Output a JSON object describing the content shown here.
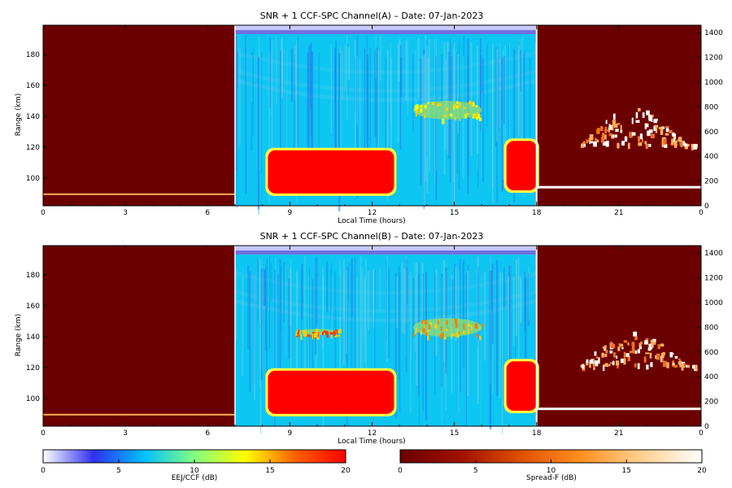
{
  "chart_data": [
    {
      "type": "heatmap",
      "title": "SNR + 1 CCF-SPC Channel(A) – Date: 07-Jan-2023",
      "xlabel": "Local Time (hours)",
      "ylabel": "Range (km)",
      "x_ticks": [
        "0",
        "3",
        "6",
        "9",
        "12",
        "15",
        "18",
        "21",
        "0"
      ],
      "xlim": [
        0,
        24
      ],
      "left_yticks": [
        "100",
        "120",
        "140",
        "160",
        "180"
      ],
      "left_ylim": [
        82,
        199
      ],
      "right_yticks": [
        "0",
        "200",
        "400",
        "600",
        "800",
        "1000",
        "1200",
        "1400"
      ],
      "right_ylim": [
        0,
        1460
      ],
      "segments": [
        {
          "x": [
            0,
            7
          ],
          "colormap": "Spread-F",
          "note_level_db": 0
        },
        {
          "x": [
            7,
            18
          ],
          "colormap": "EEJ/CCF",
          "note_level_db": 7
        },
        {
          "x": [
            18,
            24
          ],
          "colormap": "Spread-F",
          "note_level_db": 0
        }
      ],
      "features": [
        {
          "x": [
            0,
            7
          ],
          "y": [
            89,
            90
          ],
          "level_db": 14
        },
        {
          "x": [
            8.2,
            12.8
          ],
          "y": [
            90,
            118
          ],
          "level_db": 20
        },
        {
          "x": [
            16.9,
            18
          ],
          "y": [
            92,
            124
          ],
          "level_db": 20
        },
        {
          "x": [
            13.5,
            16
          ],
          "y": [
            138,
            150
          ],
          "level_db": 13
        },
        {
          "x": [
            19.6,
            23.8
          ],
          "y": [
            400,
            800
          ],
          "level_db": 16
        },
        {
          "x": [
            18,
            24
          ],
          "y": [
            150,
            160
          ],
          "level_db": 20
        }
      ]
    },
    {
      "type": "heatmap",
      "title": "SNR + 1 CCF-SPC Channel(B) – Date: 07-Jan-2023",
      "xlabel": "Local Time (hours)",
      "ylabel": "Range (km)",
      "x_ticks": [
        "0",
        "3",
        "6",
        "9",
        "12",
        "15",
        "18",
        "21",
        "0"
      ],
      "xlim": [
        0,
        24
      ],
      "left_yticks": [
        "100",
        "120",
        "140",
        "160",
        "180"
      ],
      "left_ylim": [
        82,
        199
      ],
      "right_yticks": [
        "0",
        "200",
        "400",
        "600",
        "800",
        "1000",
        "1200",
        "1400"
      ],
      "right_ylim": [
        0,
        1460
      ],
      "segments": [
        {
          "x": [
            0,
            7
          ],
          "colormap": "Spread-F",
          "note_level_db": 0
        },
        {
          "x": [
            7,
            18
          ],
          "colormap": "EEJ/CCF",
          "note_level_db": 7
        },
        {
          "x": [
            18,
            24
          ],
          "colormap": "Spread-F",
          "note_level_db": 0
        }
      ],
      "features": [
        {
          "x": [
            0,
            7
          ],
          "y": [
            89,
            90
          ],
          "level_db": 14
        },
        {
          "x": [
            8.2,
            12.8
          ],
          "y": [
            90,
            118
          ],
          "level_db": 20
        },
        {
          "x": [
            16.9,
            18
          ],
          "y": [
            92,
            124
          ],
          "level_db": 20
        },
        {
          "x": [
            9.2,
            10.8
          ],
          "y": [
            141,
            145
          ],
          "level_db": 18
        },
        {
          "x": [
            13.5,
            16
          ],
          "y": [
            140,
            152
          ],
          "level_db": 16
        },
        {
          "x": [
            19.6,
            23.8
          ],
          "y": [
            400,
            780
          ],
          "level_db": 16
        },
        {
          "x": [
            18,
            24
          ],
          "y": [
            140,
            150
          ],
          "level_db": 20
        }
      ]
    }
  ],
  "colorbars": [
    {
      "label": "EEJ/CCF (dB)",
      "ticks": [
        "0",
        "5",
        "10",
        "15",
        "20"
      ],
      "range": [
        0,
        20
      ],
      "stops": [
        "#ffffff",
        "#3030f0",
        "#00c0ff",
        "#80ff80",
        "#ffff00",
        "#ff6000",
        "#ff0000"
      ]
    },
    {
      "label": "Spread-F (dB)",
      "ticks": [
        "0",
        "5",
        "10",
        "15",
        "20"
      ],
      "range": [
        0,
        20
      ],
      "stops": [
        "#6b0000",
        "#a01000",
        "#e05000",
        "#ff9020",
        "#ffd090",
        "#ffffff"
      ]
    }
  ]
}
